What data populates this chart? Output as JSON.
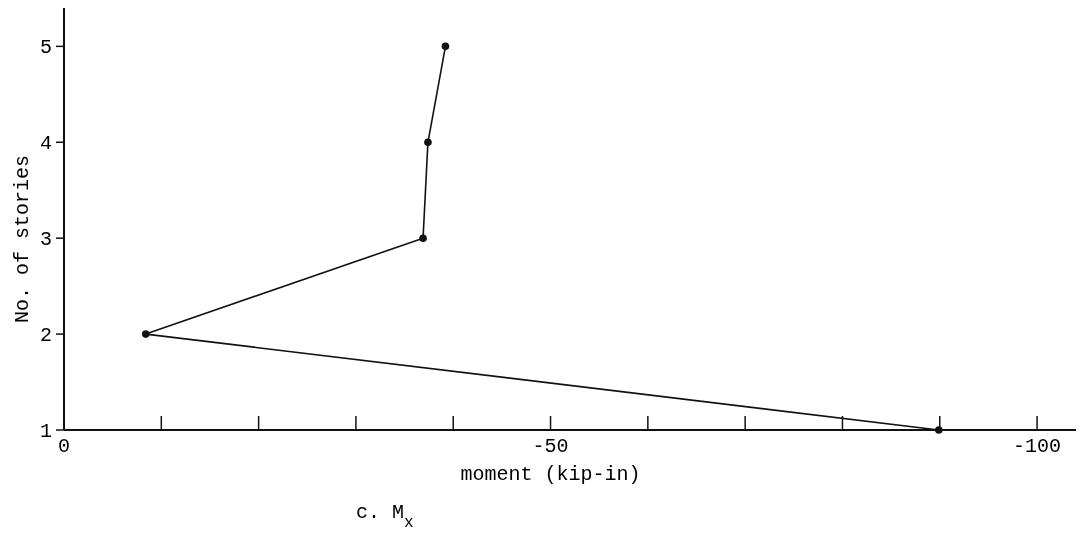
{
  "chart_data": {
    "type": "line",
    "xlabel": "moment  (kip-in)",
    "ylabel": "No. of stories",
    "annotations": [
      "c. M$_{x}$"
    ],
    "x": [
      -89.9,
      -8.4,
      -36.9,
      -37.4,
      -39.2
    ],
    "series": [
      {
        "color": "#111111",
        "values": [
          1,
          2,
          3,
          4,
          5
        ]
      }
    ],
    "xlim": [
      0,
      -104
    ],
    "xticks": [
      0,
      {
        "value": -10,
        "label": null
      },
      {
        "value": -20,
        "label": null
      },
      {
        "value": -30,
        "label": null
      },
      {
        "value": -40,
        "label": null
      },
      -50,
      {
        "value": -60,
        "label": null
      },
      {
        "value": -70,
        "label": null
      },
      {
        "value": -80,
        "label": null
      },
      {
        "value": -90,
        "label": null
      },
      -100
    ],
    "ylim": [
      1,
      5.4
    ],
    "yticks": [
      1,
      2,
      3,
      4,
      5
    ],
    "marker": "circle",
    "line_style": "solid"
  }
}
